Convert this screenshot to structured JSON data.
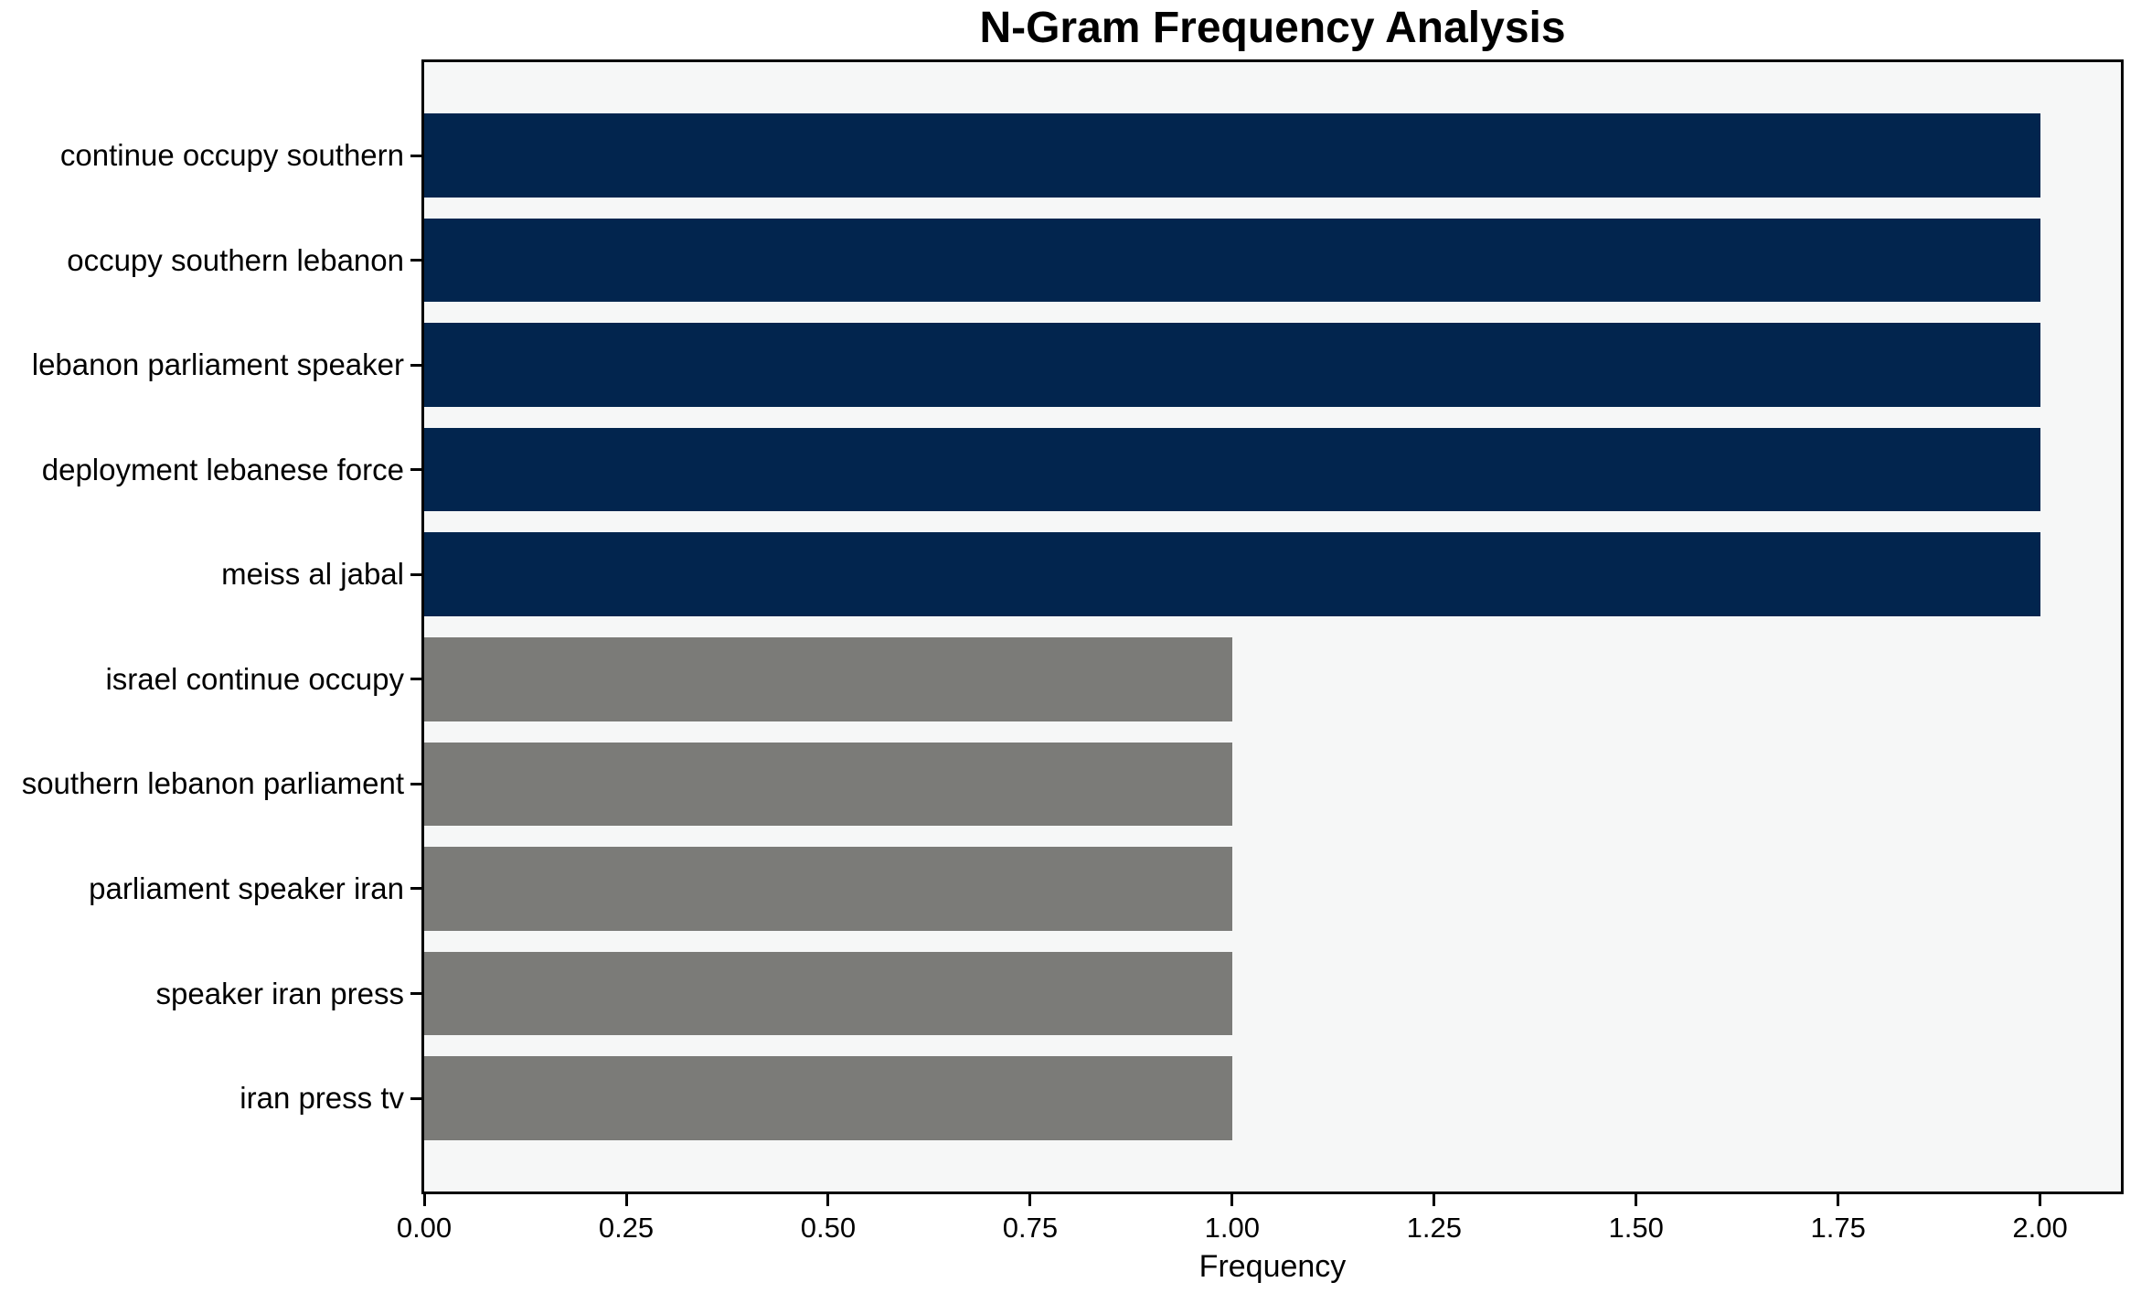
{
  "figure": {
    "title": "N-Gram Frequency Analysis",
    "background_color": "#ffffff",
    "plot_background_color": "#f6f7f7",
    "border_color": "#000000",
    "text_color": "#000000"
  },
  "chart_data": {
    "type": "bar",
    "orientation": "horizontal",
    "title": "N-Gram Frequency Analysis",
    "xlabel": "Frequency",
    "ylabel": "",
    "categories": [
      "continue occupy southern",
      "occupy southern lebanon",
      "lebanon parliament speaker",
      "deployment lebanese force",
      "meiss al jabal",
      "israel continue occupy",
      "southern lebanon parliament",
      "parliament speaker iran",
      "speaker iran press",
      "iran press tv"
    ],
    "values": [
      2,
      2,
      2,
      2,
      2,
      1,
      1,
      1,
      1,
      1
    ],
    "bar_colors": [
      "#02254e",
      "#02254e",
      "#02254e",
      "#02254e",
      "#02254e",
      "#7b7b78",
      "#7b7b78",
      "#7b7b78",
      "#7b7b78",
      "#7b7b78"
    ],
    "color_legend": {
      "navy": "#02254e",
      "gray": "#7b7b78"
    },
    "xlim": [
      0,
      2.1
    ],
    "xtick_values": [
      0,
      0.25,
      0.5,
      0.75,
      1,
      1.25,
      1.5,
      1.75,
      2
    ],
    "xtick_labels": [
      "0.00",
      "0.25",
      "0.50",
      "0.75",
      "1.00",
      "1.25",
      "1.50",
      "1.75",
      "2.00"
    ],
    "bar_height_fraction": 0.8,
    "grid": false,
    "legend": "none"
  }
}
